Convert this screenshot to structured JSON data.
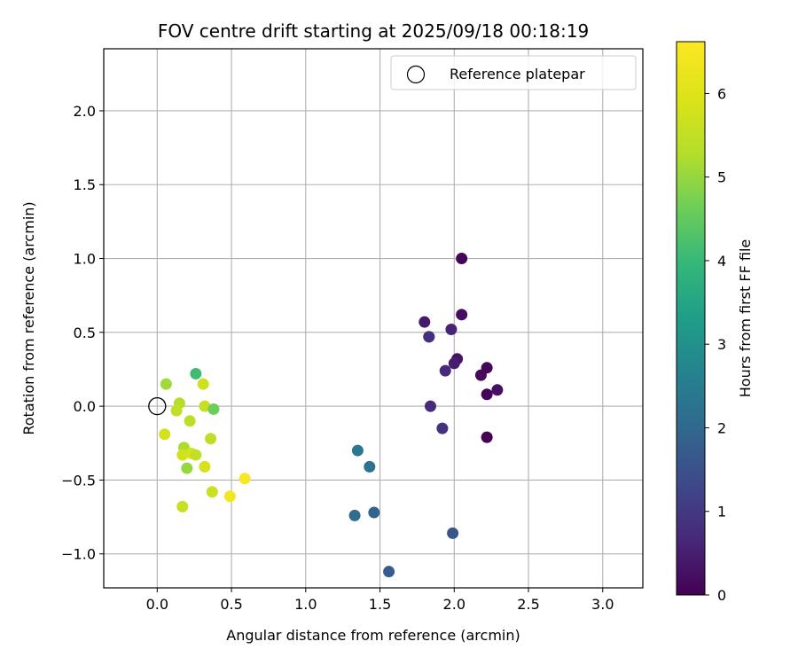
{
  "chart_data": {
    "type": "scatter",
    "title": "FOV centre drift starting at 2025/09/18 00:18:19",
    "xlabel": "Angular distance from reference (arcmin)",
    "ylabel": "Rotation from reference (arcmin)",
    "xlim": [
      -0.36,
      3.27
    ],
    "ylim": [
      -1.23,
      2.42
    ],
    "xticks": [
      0.0,
      0.5,
      1.0,
      1.5,
      2.0,
      2.5,
      3.0
    ],
    "xtick_labels": [
      "0.0",
      "0.5",
      "1.0",
      "1.5",
      "2.0",
      "2.5",
      "3.0"
    ],
    "yticks": [
      -1.0,
      -0.5,
      0.0,
      0.5,
      1.0,
      1.5,
      2.0
    ],
    "ytick_labels": [
      "−1.0",
      "−0.5",
      "0.0",
      "0.5",
      "1.0",
      "1.5",
      "2.0"
    ],
    "grid": true,
    "legend": {
      "placement": "top-right",
      "entries": [
        "Reference platepar"
      ]
    },
    "reference": {
      "x": 0.0,
      "y": 0.0,
      "marker": "open-circle",
      "label": "Reference platepar"
    },
    "colorbar": {
      "label": "Hours from first FF file",
      "colormap": "viridis",
      "range": [
        0,
        6.62
      ],
      "ticks": [
        0,
        1,
        2,
        3,
        4,
        5,
        6
      ],
      "tick_labels": [
        "0",
        "1",
        "2",
        "3",
        "4",
        "5",
        "6"
      ]
    },
    "points": [
      {
        "x": 2.05,
        "y": 1.0,
        "c": 0.05
      },
      {
        "x": 2.05,
        "y": 0.62,
        "c": 0.2
      },
      {
        "x": 1.8,
        "y": 0.57,
        "c": 0.4
      },
      {
        "x": 1.98,
        "y": 0.52,
        "c": 0.6
      },
      {
        "x": 1.83,
        "y": 0.47,
        "c": 0.9
      },
      {
        "x": 1.83,
        "y": 0.47,
        "c": 0.8
      },
      {
        "x": 2.02,
        "y": 0.32,
        "c": 0.3
      },
      {
        "x": 2.0,
        "y": 0.29,
        "c": 0.5
      },
      {
        "x": 2.22,
        "y": 0.26,
        "c": 0.1
      },
      {
        "x": 1.94,
        "y": 0.24,
        "c": 0.7
      },
      {
        "x": 2.18,
        "y": 0.21,
        "c": 0.15
      },
      {
        "x": 2.29,
        "y": 0.11,
        "c": 0.25
      },
      {
        "x": 2.22,
        "y": 0.08,
        "c": 0.05
      },
      {
        "x": 1.84,
        "y": 0.0,
        "c": 0.75
      },
      {
        "x": 1.92,
        "y": -0.15,
        "c": 0.85
      },
      {
        "x": 2.22,
        "y": -0.21,
        "c": 0.02
      },
      {
        "x": 1.35,
        "y": -0.3,
        "c": 2.4
      },
      {
        "x": 1.43,
        "y": -0.41,
        "c": 2.25
      },
      {
        "x": 1.46,
        "y": -0.72,
        "c": 1.9
      },
      {
        "x": 1.33,
        "y": -0.74,
        "c": 2.1
      },
      {
        "x": 1.99,
        "y": -0.86,
        "c": 1.6
      },
      {
        "x": 1.56,
        "y": -1.12,
        "c": 1.75
      },
      {
        "x": 0.26,
        "y": 0.22,
        "c": 4.1
      },
      {
        "x": 0.06,
        "y": 0.15,
        "c": 5.1
      },
      {
        "x": 0.31,
        "y": 0.15,
        "c": 5.7
      },
      {
        "x": 0.15,
        "y": 0.02,
        "c": 5.3
      },
      {
        "x": 0.32,
        "y": 0.0,
        "c": 5.6
      },
      {
        "x": 0.38,
        "y": -0.02,
        "c": 4.6
      },
      {
        "x": 0.13,
        "y": -0.03,
        "c": 5.5
      },
      {
        "x": 0.22,
        "y": -0.1,
        "c": 5.4
      },
      {
        "x": 0.05,
        "y": -0.19,
        "c": 5.8
      },
      {
        "x": 0.36,
        "y": -0.22,
        "c": 5.45
      },
      {
        "x": 0.18,
        "y": -0.28,
        "c": 5.2
      },
      {
        "x": 0.17,
        "y": -0.33,
        "c": 5.75
      },
      {
        "x": 0.23,
        "y": -0.32,
        "c": 5.9
      },
      {
        "x": 0.26,
        "y": -0.33,
        "c": 5.5
      },
      {
        "x": 0.32,
        "y": -0.41,
        "c": 5.85
      },
      {
        "x": 0.2,
        "y": -0.42,
        "c": 5.0
      },
      {
        "x": 0.37,
        "y": -0.58,
        "c": 5.65
      },
      {
        "x": 0.59,
        "y": -0.49,
        "c": 6.55
      },
      {
        "x": 0.49,
        "y": -0.61,
        "c": 6.4
      },
      {
        "x": 0.17,
        "y": -0.68,
        "c": 5.6
      }
    ]
  }
}
